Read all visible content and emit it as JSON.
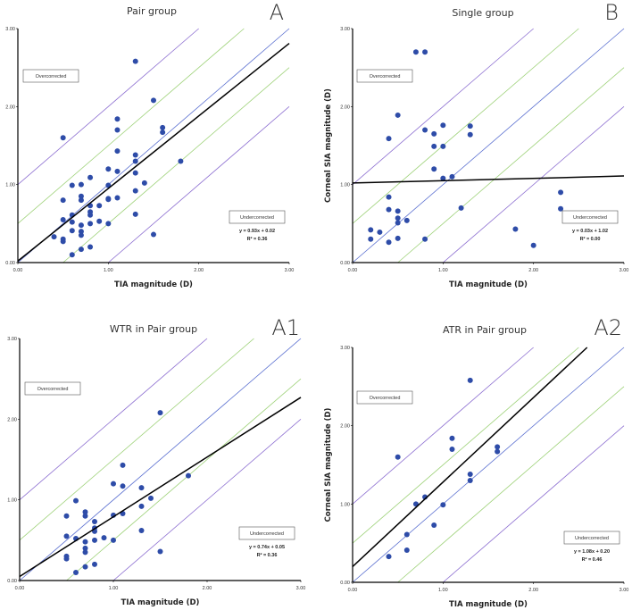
{
  "colors": {
    "point": "#2e4ca8",
    "identity": "#5a6fd0",
    "band_half": "#9fd27a",
    "band_one": "#8d6fd1",
    "regression": "#000000"
  },
  "chart_data": [
    {
      "type": "scatter",
      "panel_label": "A",
      "title": "Pair group",
      "xlabel": "TIA magnitude (D)",
      "ylabel": "",
      "xlim": [
        0,
        3
      ],
      "ylim": [
        0,
        3
      ],
      "ticks": [
        "0.00",
        "1.00",
        "2.00",
        "3.00"
      ],
      "over_label": "Overcorrected",
      "under_label": "Undercorrected",
      "reference_offsets": [
        -1,
        -0.5,
        0,
        0.5,
        1
      ],
      "regression": {
        "slope": 0.93,
        "intercept": 0.02
      },
      "equation": "y = 0.93x + 0.02",
      "r2": "R² = 0.36",
      "points": [
        [
          1.3,
          2.58
        ],
        [
          1.5,
          2.08
        ],
        [
          0.5,
          1.6
        ],
        [
          1.1,
          1.84
        ],
        [
          1.1,
          1.7
        ],
        [
          1.6,
          1.73
        ],
        [
          1.6,
          1.67
        ],
        [
          1.1,
          1.43
        ],
        [
          1.3,
          1.38
        ],
        [
          1.3,
          1.3
        ],
        [
          1.8,
          1.3
        ],
        [
          1.0,
          1.2
        ],
        [
          1.1,
          1.17
        ],
        [
          1.3,
          1.15
        ],
        [
          0.8,
          1.09
        ],
        [
          1.4,
          1.02
        ],
        [
          0.6,
          0.99
        ],
        [
          0.7,
          1.0
        ],
        [
          1.0,
          0.99
        ],
        [
          1.3,
          0.92
        ],
        [
          0.7,
          0.85
        ],
        [
          0.7,
          0.8
        ],
        [
          0.5,
          0.8
        ],
        [
          1.0,
          0.82
        ],
        [
          1.0,
          0.81
        ],
        [
          1.1,
          0.83
        ],
        [
          0.8,
          0.73
        ],
        [
          0.9,
          0.73
        ],
        [
          0.8,
          0.65
        ],
        [
          0.8,
          0.61
        ],
        [
          0.6,
          0.61
        ],
        [
          1.3,
          0.62
        ],
        [
          0.5,
          0.55
        ],
        [
          0.6,
          0.52
        ],
        [
          0.9,
          0.53
        ],
        [
          0.7,
          0.48
        ],
        [
          0.8,
          0.5
        ],
        [
          1.0,
          0.5
        ],
        [
          0.6,
          0.41
        ],
        [
          0.7,
          0.4
        ],
        [
          0.7,
          0.35
        ],
        [
          0.4,
          0.33
        ],
        [
          0.5,
          0.3
        ],
        [
          0.5,
          0.27
        ],
        [
          1.5,
          0.36
        ],
        [
          0.8,
          0.2
        ],
        [
          0.7,
          0.17
        ],
        [
          0.6,
          0.1
        ]
      ]
    },
    {
      "type": "scatter",
      "panel_label": "B",
      "title": "Single group",
      "xlabel": "TIA magnitude (D)",
      "ylabel": "Corneal SIA magnitude (D)",
      "xlim": [
        0,
        3
      ],
      "ylim": [
        0,
        3
      ],
      "ticks": [
        "0.00",
        "1.00",
        "2.00",
        "3.00"
      ],
      "over_label": "Overcorrected",
      "under_label": "Undercorrected",
      "reference_offsets": [
        -1,
        -0.5,
        0,
        0.5,
        1
      ],
      "regression": {
        "slope": 0.03,
        "intercept": 1.02
      },
      "equation": "y = 0.03x + 1.02",
      "r2": "R² = 0.00",
      "points": [
        [
          0.7,
          2.7
        ],
        [
          0.8,
          2.7
        ],
        [
          0.5,
          1.89
        ],
        [
          0.4,
          1.59
        ],
        [
          0.8,
          1.7
        ],
        [
          0.9,
          1.65
        ],
        [
          1.0,
          1.76
        ],
        [
          1.3,
          1.75
        ],
        [
          1.3,
          1.64
        ],
        [
          0.9,
          1.49
        ],
        [
          1.0,
          1.49
        ],
        [
          0.9,
          1.2
        ],
        [
          1.0,
          1.08
        ],
        [
          1.1,
          1.1
        ],
        [
          0.4,
          0.84
        ],
        [
          0.4,
          0.68
        ],
        [
          0.5,
          0.66
        ],
        [
          0.5,
          0.57
        ],
        [
          0.5,
          0.51
        ],
        [
          0.6,
          0.54
        ],
        [
          1.2,
          0.7
        ],
        [
          2.3,
          0.9
        ],
        [
          2.3,
          0.69
        ],
        [
          0.2,
          0.42
        ],
        [
          0.3,
          0.39
        ],
        [
          0.2,
          0.3
        ],
        [
          0.4,
          0.26
        ],
        [
          0.5,
          0.31
        ],
        [
          0.8,
          0.3
        ],
        [
          1.8,
          0.43
        ],
        [
          2.0,
          0.22
        ]
      ]
    },
    {
      "type": "scatter",
      "panel_label": "A1",
      "title": "WTR in Pair group",
      "xlabel": "TIA magnitude (D)",
      "ylabel": "",
      "xlim": [
        0,
        3
      ],
      "ylim": [
        0,
        3
      ],
      "ticks": [
        "0.00",
        "1.00",
        "2.00",
        "3.00"
      ],
      "over_label": "Overcorrected",
      "under_label": "Undercorrected",
      "reference_offsets": [
        -1,
        -0.5,
        0,
        0.5,
        1
      ],
      "regression": {
        "slope": 0.74,
        "intercept": 0.05
      },
      "equation": "y = 0.74x + 0.05",
      "r2": "R² = 0.36",
      "points": [
        [
          1.5,
          2.08
        ],
        [
          1.1,
          1.43
        ],
        [
          1.8,
          1.3
        ],
        [
          1.0,
          1.2
        ],
        [
          1.1,
          1.17
        ],
        [
          1.3,
          1.15
        ],
        [
          1.4,
          1.02
        ],
        [
          0.6,
          0.99
        ],
        [
          1.3,
          0.92
        ],
        [
          0.7,
          0.85
        ],
        [
          0.7,
          0.8
        ],
        [
          0.5,
          0.8
        ],
        [
          1.0,
          0.81
        ],
        [
          1.1,
          0.83
        ],
        [
          0.8,
          0.73
        ],
        [
          0.8,
          0.65
        ],
        [
          0.8,
          0.61
        ],
        [
          1.3,
          0.62
        ],
        [
          0.5,
          0.55
        ],
        [
          0.6,
          0.52
        ],
        [
          0.9,
          0.53
        ],
        [
          0.7,
          0.48
        ],
        [
          0.8,
          0.5
        ],
        [
          1.0,
          0.5
        ],
        [
          0.7,
          0.4
        ],
        [
          0.7,
          0.35
        ],
        [
          0.5,
          0.3
        ],
        [
          0.5,
          0.27
        ],
        [
          1.5,
          0.36
        ],
        [
          0.8,
          0.2
        ],
        [
          0.7,
          0.17
        ],
        [
          0.6,
          0.1
        ]
      ]
    },
    {
      "type": "scatter",
      "panel_label": "A2",
      "title": "ATR in Pair group",
      "xlabel": "TIA magnitude (D)",
      "ylabel": "Corneal SIA magnitude (D)",
      "xlim": [
        0,
        3
      ],
      "ylim": [
        0,
        3
      ],
      "ticks": [
        "0.00",
        "1.00",
        "2.00",
        "3.00"
      ],
      "over_label": "Overcorrected",
      "under_label": "Undercorrected",
      "reference_offsets": [
        -1,
        -0.5,
        0,
        0.5,
        1
      ],
      "regression": {
        "slope": 1.08,
        "intercept": 0.2
      },
      "equation": "y = 1.08x + 0.20",
      "r2": "R² = 0.46",
      "points": [
        [
          1.3,
          2.58
        ],
        [
          0.5,
          1.6
        ],
        [
          1.1,
          1.84
        ],
        [
          1.1,
          1.7
        ],
        [
          1.6,
          1.73
        ],
        [
          1.6,
          1.67
        ],
        [
          1.3,
          1.38
        ],
        [
          1.3,
          1.3
        ],
        [
          0.8,
          1.09
        ],
        [
          0.7,
          1.0
        ],
        [
          1.0,
          0.99
        ],
        [
          0.9,
          0.73
        ],
        [
          0.6,
          0.61
        ],
        [
          0.6,
          0.41
        ],
        [
          0.4,
          0.33
        ]
      ]
    }
  ]
}
